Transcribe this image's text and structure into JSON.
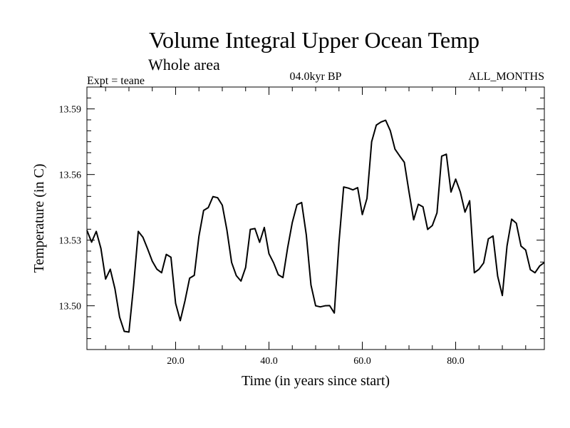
{
  "chart_data": {
    "type": "line",
    "title": "Volume Integral Upper Ocean Temp",
    "subtitle": "Whole area",
    "header_left": "Expt = teane",
    "header_center": "04.0kyr BP",
    "header_right": "ALL_MONTHS",
    "xlabel": "Time (in years since start)",
    "ylabel": "Temperature (in C)",
    "xlim": [
      1,
      99
    ],
    "ylim": [
      13.48,
      13.6
    ],
    "xticks": [
      20,
      40,
      60,
      80
    ],
    "xtick_labels": [
      "20.0",
      "40.0",
      "60.0",
      "80.0"
    ],
    "xminor_step": 5,
    "yticks": [
      13.5,
      13.53,
      13.56,
      13.59
    ],
    "ytick_labels": [
      "13.50",
      "13.53",
      "13.56",
      "13.59"
    ],
    "yminor_step": 0.005,
    "line_color": "#000000",
    "series": [
      {
        "name": "Volume Integral Upper Ocean Temp",
        "x": [
          1,
          2,
          3,
          4,
          5,
          6,
          7,
          8,
          9,
          10,
          11,
          12,
          13,
          14,
          15,
          16,
          17,
          18,
          19,
          20,
          21,
          22,
          23,
          24,
          25,
          26,
          27,
          28,
          29,
          30,
          31,
          32,
          33,
          34,
          35,
          36,
          37,
          38,
          39,
          40,
          41,
          42,
          43,
          44,
          45,
          46,
          47,
          48,
          49,
          50,
          51,
          52,
          53,
          54,
          55,
          56,
          57,
          58,
          59,
          60,
          61,
          62,
          63,
          64,
          65,
          66,
          67,
          68,
          69,
          70,
          71,
          72,
          73,
          74,
          75,
          76,
          77,
          78,
          79,
          80,
          81,
          82,
          83,
          84,
          85,
          86,
          87,
          88,
          89,
          90,
          91,
          92,
          93,
          94,
          95,
          96,
          97,
          98,
          99
        ],
        "values": [
          13.5345,
          13.5291,
          13.534,
          13.5262,
          13.5122,
          13.5167,
          13.5078,
          13.4948,
          13.4883,
          13.488,
          13.5092,
          13.534,
          13.5313,
          13.526,
          13.5204,
          13.5167,
          13.5151,
          13.5235,
          13.5222,
          13.5011,
          13.4932,
          13.5022,
          13.5126,
          13.5139,
          13.5318,
          13.5436,
          13.5449,
          13.5499,
          13.5494,
          13.546,
          13.5345,
          13.5198,
          13.5138,
          13.5113,
          13.5175,
          13.5349,
          13.5353,
          13.529,
          13.5358,
          13.5238,
          13.5196,
          13.5142,
          13.5129,
          13.5265,
          13.5381,
          13.5462,
          13.5472,
          13.5324,
          13.5095,
          13.5,
          13.4995,
          13.5,
          13.5001,
          13.4967,
          13.529,
          13.5543,
          13.5538,
          13.553,
          13.554,
          13.5417,
          13.5491,
          13.575,
          13.5826,
          13.584,
          13.5848,
          13.58,
          13.5716,
          13.5685,
          13.5656,
          13.5521,
          13.5393,
          13.5464,
          13.5452,
          13.5349,
          13.5367,
          13.5425,
          13.5684,
          13.5693,
          13.552,
          13.5579,
          13.552,
          13.5428,
          13.548,
          13.5151,
          13.5167,
          13.5196,
          13.5306,
          13.5319,
          13.5135,
          13.5047,
          13.5273,
          13.5396,
          13.5377,
          13.5273,
          13.5255,
          13.5165,
          13.5151,
          13.5182,
          13.5198
        ]
      }
    ]
  }
}
